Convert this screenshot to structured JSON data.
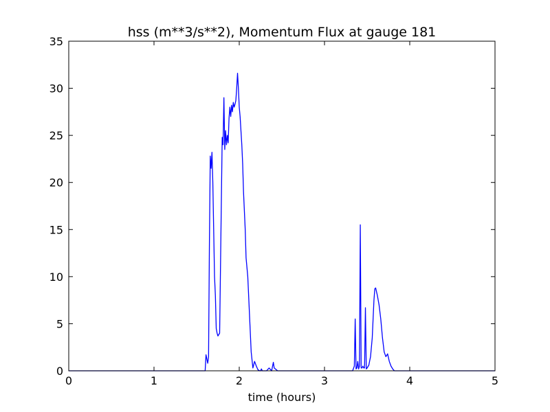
{
  "chart_data": {
    "type": "line",
    "title": "hss (m**3/s**2), Momentum Flux at gauge 181",
    "xlabel": "time (hours)",
    "ylabel": "",
    "xlim": [
      0,
      5
    ],
    "ylim": [
      0,
      35
    ],
    "xticks": [
      "0",
      "1",
      "2",
      "3",
      "4",
      "5"
    ],
    "yticks": [
      "0",
      "5",
      "10",
      "15",
      "20",
      "25",
      "30",
      "35"
    ],
    "grid": false,
    "zero_line": {
      "y": 0,
      "style": "dashed",
      "color": "#000000"
    },
    "series": [
      {
        "color": "#0000ff",
        "x": [
          0.0,
          1.6,
          1.61,
          1.63,
          1.64,
          1.65,
          1.66,
          1.67,
          1.68,
          1.69,
          1.7,
          1.71,
          1.72,
          1.73,
          1.74,
          1.75,
          1.77,
          1.79,
          1.8,
          1.81,
          1.82,
          1.83,
          1.84,
          1.85,
          1.86,
          1.87,
          1.88,
          1.89,
          1.9,
          1.91,
          1.92,
          1.93,
          1.94,
          1.95,
          1.96,
          1.97,
          1.98,
          1.99,
          2.0,
          2.01,
          2.02,
          2.03,
          2.04,
          2.05,
          2.06,
          2.07,
          2.08,
          2.1,
          2.12,
          2.14,
          2.16,
          2.18,
          2.2,
          2.22,
          2.24,
          2.25,
          2.26,
          2.27,
          2.28,
          2.29,
          2.3,
          2.32,
          2.35,
          2.38,
          2.4,
          2.41,
          2.45,
          3.33,
          3.35,
          3.36,
          3.37,
          3.38,
          3.39,
          3.4,
          3.41,
          3.42,
          3.43,
          3.44,
          3.45,
          3.46,
          3.47,
          3.48,
          3.49,
          3.5,
          3.52,
          3.54,
          3.56,
          3.57,
          3.58,
          3.59,
          3.6,
          3.62,
          3.64,
          3.66,
          3.68,
          3.7,
          3.72,
          3.74,
          3.76,
          3.78,
          3.8,
          3.81,
          3.82,
          3.83,
          3.84,
          3.85,
          3.86,
          3.88,
          3.9,
          3.91,
          3.92,
          3.93,
          3.94,
          3.95,
          3.96,
          3.97,
          3.98,
          3.99,
          4.0,
          4.02,
          4.05,
          5.0
        ],
        "y": [
          0,
          0,
          1.7,
          0.8,
          1.5,
          13.5,
          22.8,
          21.5,
          23.2,
          20.0,
          15.0,
          10.0,
          8.0,
          4.5,
          4.0,
          3.7,
          4.0,
          18.0,
          24.8,
          24.0,
          29.0,
          23.5,
          25.5,
          24.0,
          25.0,
          24.2,
          26.8,
          28.0,
          27.0,
          28.2,
          27.5,
          28.5,
          28.0,
          28.3,
          28.7,
          30.0,
          31.6,
          30.0,
          28.0,
          27.0,
          25.5,
          24.0,
          22.0,
          19.0,
          17.0,
          15.0,
          12.0,
          10.0,
          6.0,
          2.0,
          0.3,
          1.0,
          0.5,
          0.1,
          0.0,
          0.0,
          0.2,
          0.0,
          0.0,
          0.0,
          0.0,
          0.0,
          0.3,
          0.0,
          0.9,
          0.3,
          0.0,
          0.0,
          0.5,
          5.5,
          0.2,
          0.3,
          1.0,
          0.2,
          0.5,
          15.5,
          0.3,
          0.3,
          0.5,
          0.3,
          0.3,
          6.7,
          0.2,
          0.3,
          0.6,
          1.5,
          3.5,
          5.5,
          7.5,
          8.7,
          8.8,
          8.0,
          7.0,
          5.5,
          3.5,
          2.0,
          1.5,
          1.8,
          1.0,
          0.5,
          0.2,
          0.1,
          0.0,
          0.0,
          0.0,
          0.0,
          0.0,
          0.0,
          0.0,
          0.0,
          0.0,
          0.0,
          0.0,
          0.0,
          0.0,
          0.0,
          0.0,
          0.0,
          0.0,
          0.0,
          0.0,
          0.0
        ]
      }
    ]
  }
}
